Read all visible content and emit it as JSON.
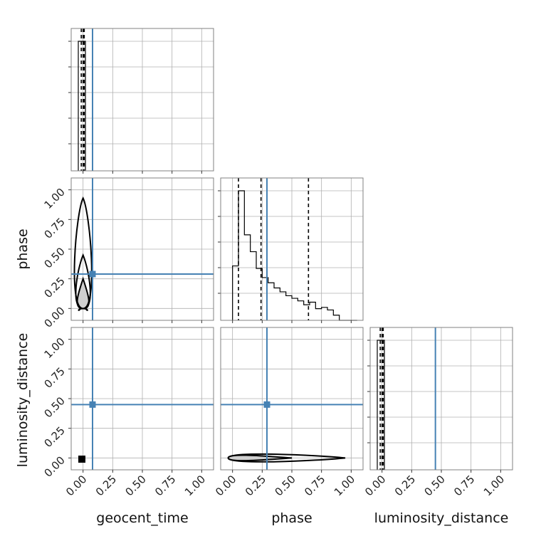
{
  "chart_data": {
    "type": "corner",
    "title": "",
    "parameters": [
      "geocent_time",
      "phase",
      "luminosity_distance"
    ],
    "axis_labels": {
      "x": [
        "geocent_time",
        "phase",
        "luminosity_distance"
      ],
      "y": [
        "phase",
        "luminosity_distance"
      ]
    },
    "tick_labels": [
      "0.00",
      "0.25",
      "0.50",
      "0.75",
      "1.00"
    ],
    "axis_range": [
      -0.1,
      1.1
    ],
    "grid": true,
    "colors": {
      "hist": "#000000",
      "truth": "#4682b4",
      "quantile": "#000000",
      "grid": "#b0b0b0",
      "frame": "#808080"
    },
    "truths": {
      "geocent_time": 0.08,
      "phase": 0.29,
      "luminosity_distance": 0.45
    },
    "diagonal": [
      {
        "parameter": "geocent_time",
        "bin_edges": [
          -0.04,
          0.02
        ],
        "counts": [
          1.0
        ],
        "quantiles": [
          -0.015,
          0.0,
          0.01
        ]
      },
      {
        "parameter": "phase",
        "bin_edges": [
          0.0,
          0.05,
          0.1,
          0.15,
          0.2,
          0.25,
          0.3,
          0.35,
          0.4,
          0.45,
          0.5,
          0.55,
          0.6,
          0.65,
          0.7,
          0.75,
          0.8,
          0.85,
          0.9,
          0.95,
          1.0,
          1.05
        ],
        "counts": [
          0.42,
          1.0,
          0.66,
          0.53,
          0.4,
          0.33,
          0.29,
          0.25,
          0.22,
          0.19,
          0.17,
          0.15,
          0.12,
          0.14,
          0.09,
          0.1,
          0.08,
          0.04,
          0.0,
          0.0,
          0.0
        ],
        "quantiles": [
          0.05,
          0.24,
          0.64
        ]
      },
      {
        "parameter": "luminosity_distance",
        "bin_edges": [
          -0.04,
          0.02
        ],
        "counts": [
          1.0
        ],
        "quantiles": [
          -0.015,
          0.0,
          0.01
        ]
      }
    ],
    "scatter_panels": [
      {
        "x": "geocent_time",
        "y": "phase",
        "contours": {
          "center": [
            0.0,
            0.07
          ],
          "x_spread": 0.015,
          "y_spread": [
            0.06,
            0.25,
            0.45,
            0.93
          ]
        }
      },
      {
        "x": "geocent_time",
        "y": "luminosity_distance",
        "points": [
          [
            -0.01,
            -0.01
          ]
        ]
      },
      {
        "x": "phase",
        "y": "luminosity_distance",
        "contours": {
          "center": [
            0.05,
            0.0
          ],
          "x_spread": [
            0.25,
            0.5,
            0.95
          ],
          "y_spread": [
            0.01,
            0.025,
            0.04
          ]
        }
      }
    ]
  }
}
